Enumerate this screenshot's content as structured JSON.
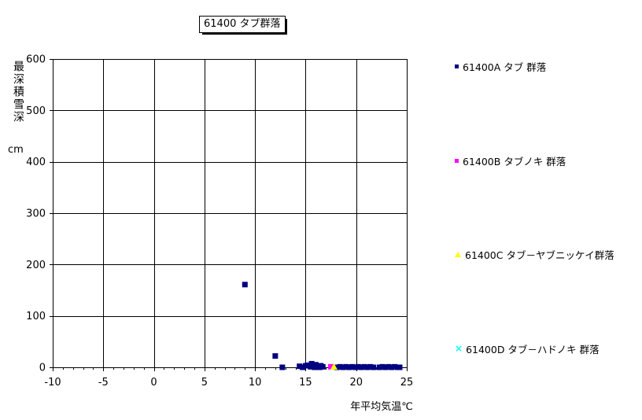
{
  "title": {
    "text": "61400 タブ群落"
  },
  "y_axis": {
    "label_vertical": "最深積雪深",
    "unit": "cm"
  },
  "x_axis": {
    "label": "年平均気温℃"
  },
  "legend": {
    "items": [
      {
        "label": "61400A タブ 群落",
        "marker": "square",
        "color": "#000080"
      },
      {
        "label": "61400B タブノキ 群落",
        "marker": "square",
        "color": "#ff00ff"
      },
      {
        "label": "61400C タブ－ヤブニッケイ群落",
        "marker": "triangle",
        "color": "#ffff00"
      },
      {
        "label": "61400D タブ－ハドノキ 群落",
        "marker": "x",
        "color": "#00ffff"
      }
    ]
  },
  "chart_data": {
    "type": "scatter",
    "title": "61400 タブ群落",
    "xlabel": "年平均気温℃",
    "ylabel": "最深積雪深 cm",
    "xlim": [
      -10,
      25
    ],
    "ylim": [
      0,
      600
    ],
    "x_ticks": [
      -10,
      -5,
      0,
      5,
      10,
      15,
      20,
      25
    ],
    "y_ticks": [
      0,
      100,
      200,
      300,
      400,
      500,
      600
    ],
    "x_minor_step": 1,
    "grid": true,
    "legend_position": "right",
    "axis_color": "#000000",
    "grid_color": "#000000",
    "series": [
      {
        "name": "61400A タブ 群落",
        "marker": "square",
        "color": "#000080",
        "points": [
          [
            9.0,
            161
          ],
          [
            12.0,
            22
          ],
          [
            12.7,
            0
          ],
          [
            14.4,
            2
          ],
          [
            14.7,
            0
          ],
          [
            15.0,
            3
          ],
          [
            15.2,
            4
          ],
          [
            15.5,
            1
          ],
          [
            15.6,
            7
          ],
          [
            15.8,
            3
          ],
          [
            15.9,
            0
          ],
          [
            16.0,
            5
          ],
          [
            16.2,
            2
          ],
          [
            16.4,
            0
          ],
          [
            16.5,
            3
          ],
          [
            16.7,
            1
          ],
          [
            18.1,
            0
          ],
          [
            18.4,
            1
          ],
          [
            18.7,
            0
          ],
          [
            19.0,
            1
          ],
          [
            19.3,
            0
          ],
          [
            19.6,
            1
          ],
          [
            19.9,
            0
          ],
          [
            20.2,
            1
          ],
          [
            20.5,
            0
          ],
          [
            20.8,
            1
          ],
          [
            21.1,
            0
          ],
          [
            21.4,
            1
          ],
          [
            21.7,
            0
          ],
          [
            22.3,
            0
          ],
          [
            22.6,
            1
          ],
          [
            22.9,
            0
          ],
          [
            23.2,
            1
          ],
          [
            23.5,
            0
          ],
          [
            23.8,
            1
          ],
          [
            24.1,
            0
          ],
          [
            24.3,
            0
          ]
        ]
      },
      {
        "name": "61400B タブノキ 群落",
        "marker": "square",
        "color": "#ff00ff",
        "points": [
          [
            17.5,
            1
          ]
        ]
      },
      {
        "name": "61400C タブ－ヤブニッケイ群落",
        "marker": "triangle",
        "color": "#ffff00",
        "points": [
          [
            17.8,
            1
          ]
        ]
      },
      {
        "name": "61400D タブ－ハドノキ 群落",
        "marker": "x",
        "color": "#00ffff",
        "points": []
      }
    ]
  }
}
